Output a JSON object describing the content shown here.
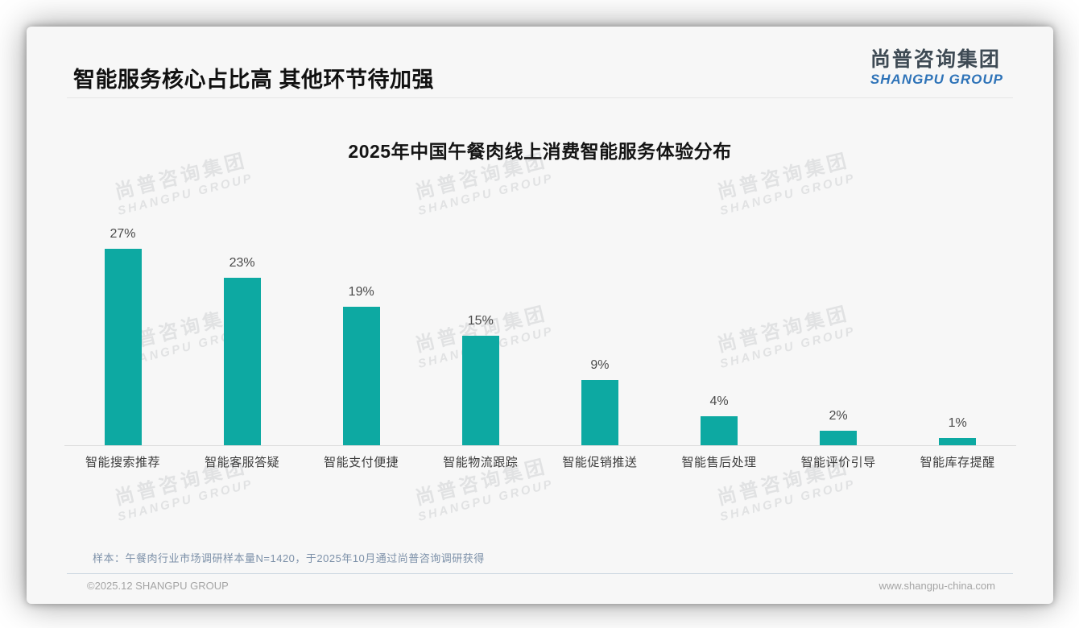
{
  "page": {
    "main_title": "智能服务核心占比高 其他环节待加强",
    "logo": {
      "cn": "尚普咨询集团",
      "en": "SHANGPU GROUP"
    },
    "watermark": {
      "cn": "尚普咨询集团",
      "en": "SHANGPU GROUP"
    },
    "note": "样本：午餐肉行业市场调研样本量N=1420，于2025年10月通过尚普咨询调研获得",
    "footer_left": "©2025.12 SHANGPU GROUP",
    "footer_right": "www.shangpu-china.com"
  },
  "chart_data": {
    "type": "bar",
    "title": "2025年中国午餐肉线上消费智能服务体验分布",
    "categories": [
      "智能搜索推荐",
      "智能客服答疑",
      "智能支付便捷",
      "智能物流跟踪",
      "智能促销推送",
      "智能售后处理",
      "智能评价引导",
      "智能库存提醒"
    ],
    "values": [
      27,
      23,
      19,
      15,
      9,
      4,
      2,
      1
    ],
    "value_labels": [
      "27%",
      "23%",
      "19%",
      "15%",
      "9%",
      "4%",
      "2%",
      "1%"
    ],
    "unit": "%",
    "bar_color": "#0da9a2",
    "ylim": [
      0,
      30
    ],
    "grid": false,
    "legend": "none",
    "xlabel": "",
    "ylabel": ""
  }
}
